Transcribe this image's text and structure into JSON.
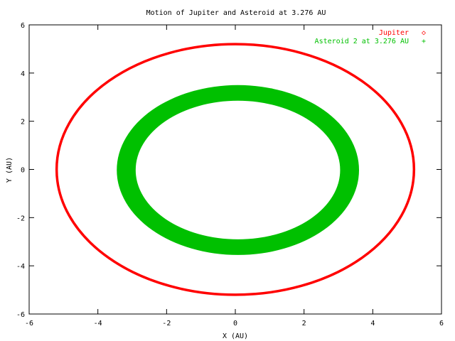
{
  "chart_data": {
    "type": "scatter",
    "title": "Motion of Jupiter and Asteroid at 3.276 AU",
    "xlabel": "X (AU)",
    "ylabel": "Y (AU)",
    "xlim": [
      -6,
      6
    ],
    "ylim": [
      -6,
      6
    ],
    "xticks": [
      -6,
      -4,
      -2,
      0,
      2,
      4,
      6
    ],
    "yticks": [
      -6,
      -4,
      -2,
      0,
      2,
      4,
      6
    ],
    "grid": false,
    "legend_position": "top-right",
    "series": [
      {
        "name": "Jupiter",
        "marker_symbol": "◇",
        "color": "#ff0000",
        "shape": "ellipse",
        "center": [
          0,
          0
        ],
        "semi_axis_x": 5.2,
        "semi_axis_y": 5.2,
        "band_width": 0.0
      },
      {
        "name": "Asteroid 2 at 3.276 AU",
        "marker_symbol": "+",
        "color": "#00c000",
        "shape": "ellipse_band",
        "inner_boundary": {
          "x_min": -2.9,
          "x_max": 3.05,
          "y_min": -2.9,
          "y_max": 2.85
        },
        "outer_boundary": {
          "x_min": -3.45,
          "x_max": 3.6,
          "y_min": -3.55,
          "y_max": 3.5
        }
      }
    ]
  }
}
